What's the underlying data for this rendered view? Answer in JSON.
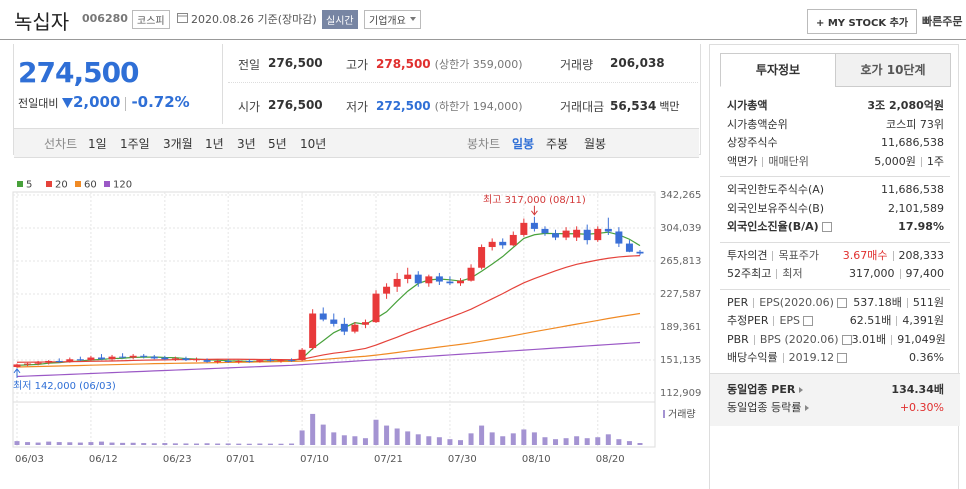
{
  "header": {
    "name": "녹십자",
    "code": "006280",
    "market": "코스피",
    "date": "2020.08.26",
    "basis": "기준(장마감)",
    "realtime": "실시간",
    "overview": "기업개요",
    "my_stock": "+ MY STOCK 추가",
    "quick_order": "빠른주문"
  },
  "price": {
    "current": "274,500",
    "change_label": "전일대비",
    "change": "2,000",
    "change_rate": "-0.72%"
  },
  "summary": [
    [
      {
        "label": "전일",
        "value": "276,500"
      },
      {
        "label": "고가",
        "value": "278,500",
        "note": "(상한가 359,000)",
        "color": "#e0302f"
      },
      {
        "label": "거래량",
        "value": "206,038"
      }
    ],
    [
      {
        "label": "시가",
        "value": "276,500"
      },
      {
        "label": "저가",
        "value": "272,500",
        "note": "(하한가 194,000)",
        "color": "#2f6fd6"
      },
      {
        "label": "거래대금",
        "value": "56,534",
        "unit": "백만"
      }
    ]
  ],
  "periods": {
    "line_label": "선차트",
    "line": [
      "1일",
      "1주일",
      "3개월",
      "1년",
      "3년",
      "5년",
      "10년"
    ],
    "candle_label": "봉차트",
    "candle": [
      "일봉",
      "주봉",
      "월봉"
    ],
    "active": "일봉"
  },
  "chart_data": {
    "type": "candlestick",
    "categories": [
      "06/03",
      null,
      null,
      null,
      null,
      null,
      null,
      "06/12",
      null,
      null,
      null,
      null,
      null,
      null,
      "06/23",
      null,
      null,
      null,
      null,
      null,
      "07/01",
      null,
      null,
      null,
      null,
      null,
      null,
      "07/10",
      null,
      null,
      null,
      null,
      null,
      null,
      "07/21",
      null,
      null,
      null,
      null,
      null,
      null,
      "07/30",
      null,
      null,
      null,
      null,
      null,
      null,
      "08/10",
      null,
      null,
      null,
      null,
      null,
      null,
      "08/20",
      null,
      null,
      null,
      null
    ],
    "candles": [
      [
        143000,
        147000,
        142000,
        146000
      ],
      [
        146000,
        148000,
        144000,
        147000
      ],
      [
        147000,
        150000,
        145000,
        148000
      ],
      [
        148000,
        151000,
        146000,
        150000
      ],
      [
        150000,
        153000,
        148000,
        149000
      ],
      [
        149000,
        154000,
        148000,
        152000
      ],
      [
        152000,
        155000,
        150000,
        151000
      ],
      [
        151000,
        156000,
        150000,
        154000
      ],
      [
        154000,
        158000,
        151000,
        152000
      ],
      [
        152000,
        157000,
        150000,
        155000
      ],
      [
        155000,
        159000,
        153000,
        154000
      ],
      [
        154000,
        158000,
        152000,
        156000
      ],
      [
        156000,
        158000,
        153000,
        155000
      ],
      [
        155000,
        157000,
        152000,
        153000
      ],
      [
        154000,
        156000,
        151000,
        152000
      ],
      [
        152000,
        155000,
        150000,
        153000
      ],
      [
        153000,
        155000,
        150000,
        151000
      ],
      [
        151000,
        154000,
        149000,
        152000
      ],
      [
        151000,
        153000,
        148000,
        149000
      ],
      [
        149000,
        152000,
        147000,
        150000
      ],
      [
        150000,
        152000,
        148000,
        149000
      ],
      [
        149000,
        151000,
        147000,
        150000
      ],
      [
        150000,
        152000,
        148000,
        149000
      ],
      [
        149000,
        152000,
        148000,
        151000
      ],
      [
        151000,
        153000,
        149000,
        150000
      ],
      [
        150000,
        152000,
        148000,
        151000
      ],
      [
        151000,
        153000,
        149000,
        150000
      ],
      [
        151000,
        165000,
        150000,
        163000
      ],
      [
        165000,
        210000,
        163000,
        205000
      ],
      [
        205000,
        212000,
        196000,
        198000
      ],
      [
        198000,
        205000,
        190000,
        193000
      ],
      [
        193000,
        200000,
        180000,
        184000
      ],
      [
        184000,
        195000,
        182000,
        192000
      ],
      [
        192000,
        198000,
        188000,
        195000
      ],
      [
        195000,
        232000,
        194000,
        228000
      ],
      [
        228000,
        240000,
        222000,
        236000
      ],
      [
        236000,
        252000,
        230000,
        245000
      ],
      [
        245000,
        258000,
        240000,
        250000
      ],
      [
        250000,
        254000,
        236000,
        240000
      ],
      [
        240000,
        250000,
        236000,
        248000
      ],
      [
        248000,
        252000,
        238000,
        242000
      ],
      [
        242000,
        248000,
        238000,
        240000
      ],
      [
        240000,
        246000,
        237000,
        243000
      ],
      [
        243000,
        262000,
        242000,
        258000
      ],
      [
        258000,
        285000,
        256000,
        282000
      ],
      [
        282000,
        292000,
        278000,
        288000
      ],
      [
        288000,
        292000,
        280000,
        284000
      ],
      [
        284000,
        300000,
        283000,
        296000
      ],
      [
        296000,
        315000,
        294000,
        310000
      ],
      [
        310000,
        317000,
        300000,
        303000
      ],
      [
        303000,
        306000,
        295000,
        298000
      ],
      [
        298000,
        302000,
        290000,
        293000
      ],
      [
        293000,
        305000,
        290000,
        301000
      ],
      [
        293000,
        306000,
        289000,
        302000
      ],
      [
        302000,
        308000,
        285000,
        290000
      ],
      [
        290000,
        306000,
        288000,
        303000
      ],
      [
        303000,
        316000,
        296000,
        300000
      ],
      [
        300000,
        305000,
        282000,
        286000
      ],
      [
        286000,
        290000,
        276000,
        276500
      ],
      [
        276500,
        278500,
        272500,
        274500
      ]
    ],
    "up_color": "#e8393a",
    "down_color": "#3a6fd6",
    "series": [
      {
        "name": "5",
        "color": "#48a13b",
        "values": [
          145000,
          145500,
          146000,
          147500,
          148000,
          149200,
          150000,
          151200,
          151800,
          152800,
          153200,
          154200,
          154400,
          154600,
          154000,
          153800,
          152800,
          152200,
          151400,
          151000,
          150200,
          150000,
          149400,
          149800,
          149800,
          150200,
          150200,
          153000,
          164400,
          173400,
          182800,
          188600,
          194400,
          192400,
          199400,
          207000,
          219200,
          230800,
          239800,
          243800,
          245000,
          244000,
          242600,
          246200,
          254000,
          262200,
          271000,
          281600,
          292000,
          296200,
          297800,
          297600,
          297400,
          297400,
          296800,
          297800,
          299200,
          296200,
          291000,
          283600
        ]
      },
      {
        "name": "20",
        "color": "#e5433b",
        "values": [
          148500,
          148600,
          148700,
          148900,
          149000,
          149200,
          149400,
          149600,
          149800,
          150000,
          150300,
          150600,
          150900,
          151100,
          151300,
          151500,
          151700,
          151800,
          151900,
          152000,
          152000,
          152000,
          151900,
          151800,
          151700,
          151600,
          151500,
          152000,
          154500,
          157000,
          159000,
          160500,
          162500,
          164500,
          168500,
          173000,
          177500,
          182500,
          187000,
          191500,
          196000,
          200500,
          205000,
          210000,
          216000,
          222000,
          228000,
          234500,
          240500,
          245500,
          250000,
          254500,
          258500,
          262000,
          264500,
          267000,
          269000,
          270500,
          271500,
          272000
        ]
      },
      {
        "name": "60",
        "color": "#f08a24",
        "values": [
          143000,
          143300,
          143600,
          143900,
          144200,
          144500,
          144800,
          145100,
          145400,
          145700,
          146000,
          146300,
          146600,
          146900,
          147100,
          147300,
          147500,
          147700,
          147900,
          148100,
          148300,
          148500,
          148700,
          148900,
          149100,
          149300,
          149500,
          149800,
          150800,
          151800,
          152800,
          153700,
          154600,
          155500,
          156800,
          158200,
          159800,
          161500,
          163000,
          164600,
          166200,
          167700,
          169200,
          170900,
          172900,
          175000,
          177100,
          179300,
          181600,
          183900,
          186100,
          188300,
          190500,
          192700,
          194800,
          197000,
          199200,
          201200,
          203100,
          205000
        ]
      },
      {
        "name": "120",
        "color": "#9b59c6",
        "values": [
          132000,
          132500,
          133000,
          133500,
          134000,
          134500,
          135000,
          135500,
          136000,
          136500,
          137000,
          137500,
          138000,
          138500,
          139000,
          139500,
          140000,
          140500,
          141000,
          141500,
          142000,
          142500,
          143000,
          143500,
          144000,
          144500,
          145000,
          145800,
          146600,
          147400,
          148200,
          149000,
          149800,
          150600,
          151400,
          152200,
          153000,
          153800,
          154600,
          155400,
          156200,
          157000,
          157800,
          158600,
          159400,
          160200,
          161000,
          161800,
          162600,
          163400,
          164200,
          165000,
          165800,
          166600,
          167400,
          168200,
          169000,
          169800,
          170600,
          171400
        ]
      }
    ],
    "volume": [
      400000,
      300000,
      250000,
      350000,
      300000,
      280000,
      250000,
      300000,
      350000,
      250000,
      220000,
      230000,
      200000,
      180000,
      200000,
      170000,
      160000,
      150000,
      180000,
      150000,
      160000,
      140000,
      130000,
      150000,
      140000,
      130000,
      150000,
      1500000,
      3200000,
      2100000,
      1300000,
      1000000,
      900000,
      700000,
      2600000,
      2000000,
      1700000,
      1400000,
      1100000,
      900000,
      800000,
      600000,
      500000,
      1200000,
      2000000,
      1300000,
      900000,
      1200000,
      1600000,
      1300000,
      800000,
      600000,
      700000,
      900000,
      700000,
      800000,
      1100000,
      600000,
      400000,
      206038
    ],
    "volume_color": "#a493d2",
    "volume_label": "거래량",
    "vlim": [
      0,
      3500000
    ],
    "ylim": [
      112909,
      342265
    ],
    "yticks": [
      {
        "value": 112909,
        "label": "112,909"
      },
      {
        "value": 151135,
        "label": "151,135"
      },
      {
        "value": 189361,
        "label": "189,361"
      },
      {
        "value": 227587,
        "label": "227,587"
      },
      {
        "value": 265813,
        "label": "265,813"
      },
      {
        "value": 304039,
        "label": "304,039"
      },
      {
        "value": 342265,
        "label": "342,265"
      }
    ],
    "grid": true,
    "high_label": "최고 317,000 (08/11)",
    "low_label": "최저 142,000 (06/03)"
  },
  "tabs": [
    "투자정보",
    "호가 10단계"
  ],
  "info": [
    {
      "rows": [
        {
          "labels": [
            "시가총액"
          ],
          "values": [
            "3조 2,080억원"
          ],
          "bold": true
        },
        {
          "labels": [
            "시가총액순위"
          ],
          "values": [
            "코스피 73위"
          ]
        },
        {
          "labels": [
            "상장주식수"
          ],
          "values": [
            "11,686,538"
          ]
        },
        {
          "labels": [
            "액면가",
            "매매단위"
          ],
          "values": [
            "5,000원",
            "1주"
          ]
        }
      ]
    },
    {
      "rows": [
        {
          "labels": [
            "외국인한도주식수(A)"
          ],
          "values": [
            "11,686,538"
          ]
        },
        {
          "labels": [
            "외국인보유주식수(B)"
          ],
          "values": [
            "2,101,589"
          ]
        },
        {
          "labels": [
            "외국인소진율(B/A)"
          ],
          "values": [
            "17.98%"
          ],
          "bold": true,
          "help": true
        }
      ]
    },
    {
      "rows": [
        {
          "labels": [
            "투자의견",
            "목표주가"
          ],
          "values": [
            "3.67매수",
            "208,333"
          ],
          "colors": [
            "#e0302f",
            "#333333"
          ]
        },
        {
          "labels": [
            "52주최고",
            "최저"
          ],
          "values": [
            "317,000",
            "97,400"
          ]
        }
      ]
    },
    {
      "rows": [
        {
          "labels": [
            "PER",
            "EPS(2020.06)"
          ],
          "values": [
            "537.18배",
            "511원"
          ],
          "help": true
        },
        {
          "labels": [
            "추정PER",
            "EPS"
          ],
          "values": [
            "62.51배",
            "4,391원"
          ],
          "help": true
        },
        {
          "labels": [
            "PBR",
            "BPS (2020.06)"
          ],
          "values": [
            "3.01배",
            "91,049원"
          ],
          "help": true
        },
        {
          "labels": [
            "배당수익률",
            "2019.12"
          ],
          "values": [
            "0.36%"
          ],
          "help": true
        }
      ]
    },
    {
      "shaded": true,
      "rows": [
        {
          "labels": [
            "동일업종 PER"
          ],
          "values": [
            "134.34배"
          ],
          "bold": true,
          "arrow": true
        },
        {
          "labels": [
            "동일업종 등락률"
          ],
          "values": [
            "+0.30%"
          ],
          "arrow": true,
          "colors": [
            "#e0302f"
          ]
        }
      ]
    }
  ]
}
